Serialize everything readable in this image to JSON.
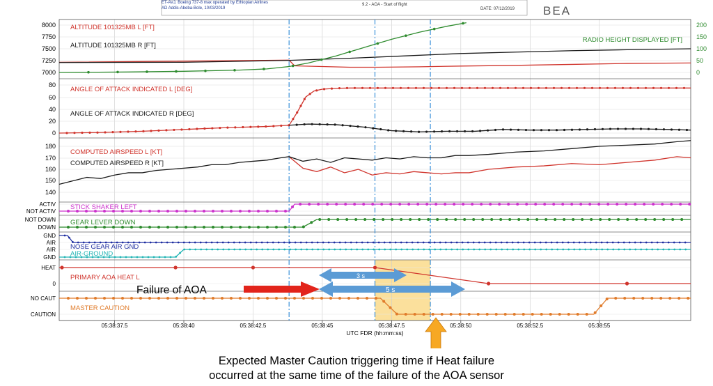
{
  "header": {
    "aircraft": "ET-AVJ, Boeing 737-8 max operated by Ethiopian Airlines",
    "airport": "AD Addis-Abeba-Bole, 10/03/2019",
    "figure": "9.2 - AOA - Start of flight",
    "date": "DATE: 07/12/2019",
    "logo": "BEA"
  },
  "annotations": {
    "failure_label": "Failure of AOA",
    "span_3s": "3 s",
    "span_5s": "5 s",
    "note_line1": "Expected Master Caution triggering time if Heat failure",
    "note_line2": "occurred at the same time of the failure of the AOA sensor"
  },
  "colors": {
    "red": "#d0342c",
    "black": "#1a1a1a",
    "green": "#2e8b2e",
    "magenta": "#cc33cc",
    "blue": "#1f2fa0",
    "cyan": "#1fb3b3",
    "orange": "#e07b2a",
    "highlight": "#f7c64a",
    "arrow_blue": "#5b9bd5",
    "arrow_red": "#e2241b"
  },
  "chart_data": {
    "type": "line",
    "xlabel": "UTC FDR (hh:mm:ss)",
    "x_ticks": [
      "05:38:37.5",
      "05:38:40",
      "05:38:42.5",
      "05:38:45",
      "05:38:47.5",
      "05:38:50",
      "05:38:52.5",
      "05:38:55"
    ],
    "x_tick_seconds": [
      37.5,
      40,
      42.5,
      45,
      47.5,
      50,
      52.5,
      55
    ],
    "x_range_seconds": [
      35.5,
      58.3
    ],
    "markers_seconds": [
      43.8,
      46.9,
      48.9
    ],
    "highlight_seconds": [
      46.9,
      48.9
    ],
    "panels": [
      {
        "name": "altitude",
        "y_ticks": [
          "8000",
          "7750",
          "7500",
          "7250",
          "7000"
        ],
        "y_range": [
          6950,
          8050
        ],
        "right_ticks": [
          "200",
          "150",
          "100",
          "50",
          "0"
        ],
        "right_range": [
          -10,
          210
        ],
        "series": [
          {
            "name": "ALTITUDE 101325MB L [FT]",
            "color": "#d0342c",
            "x": [
              35.5,
              43.8,
              44.0,
              45.0,
              46.0,
              47.0,
              48.5,
              50,
              52,
              54,
              56,
              58.3
            ],
            "y": [
              7215,
              7260,
              7140,
              7125,
              7110,
              7110,
              7120,
              7135,
              7150,
              7170,
              7190,
              7200
            ]
          },
          {
            "name": "ALTITUDE 101325MB R [FT]",
            "color": "#1a1a1a",
            "x": [
              35.5,
              40,
              43.8,
              46,
              48,
              50,
              52,
              54,
              56,
              58.3
            ],
            "y": [
              7210,
              7215,
              7255,
              7300,
              7350,
              7400,
              7430,
              7460,
              7480,
              7500
            ]
          },
          {
            "name": "RADIO HEIGHT DISPLAYED [FT]",
            "color": "#2e8b2e",
            "axis": "right",
            "x": [
              35.5,
              38,
              40,
              42,
              43,
              43.8,
              44.5,
              45.5,
              46.5,
              47.5,
              48.5,
              49.5,
              50.2
            ],
            "y": [
              0,
              2,
              5,
              10,
              15,
              25,
              40,
              70,
              105,
              140,
              170,
              195,
              210
            ]
          }
        ]
      },
      {
        "name": "aoa",
        "y_ticks": [
          "80",
          "60",
          "40",
          "20",
          "0"
        ],
        "y_range": [
          -6,
          86
        ],
        "series": [
          {
            "name": "ANGLE OF ATTACK INDICATED L [DEG]",
            "color": "#d0342c",
            "x": [
              35.5,
              37,
              38.5,
              40,
              41.5,
              43,
              43.8,
              44.1,
              44.4,
              44.7,
              45.0,
              45.5,
              46,
              47,
              48,
              50,
              52,
              54,
              56,
              58.3
            ],
            "y": [
              0,
              1,
              3,
              6,
              9,
              11,
              13,
              35,
              60,
              70,
              73,
              74.5,
              75,
              75,
              75,
              75,
              75,
              75,
              75,
              75
            ]
          },
          {
            "name": "ANGLE OF ATTACK INDICATED R [DEG]",
            "color": "#1a1a1a",
            "x": [
              43.8,
              44.5,
              45.5,
              46.5,
              47.5,
              48.5,
              49.5,
              50.5,
              51.5,
              52.5,
              53.5,
              54.5,
              55.5,
              56.5,
              57.5,
              58.3
            ],
            "y": [
              13,
              15,
              14,
              10,
              4,
              2,
              3,
              3,
              6,
              5,
              5,
              6,
              7,
              7,
              6,
              5
            ]
          }
        ]
      },
      {
        "name": "airspeed",
        "y_ticks": [
          "180",
          "170",
          "160",
          "150",
          "140"
        ],
        "y_range": [
          135,
          186
        ],
        "series": [
          {
            "name": "COMPUTED AIRSPEED L [KT]",
            "color": "#d0342c",
            "x": [
              43.8,
              44.3,
              44.8,
              45.3,
              45.8,
              46.3,
              46.8,
              47.3,
              47.8,
              48.3,
              48.8,
              49.3,
              49.8,
              50.3,
              51,
              52,
              53,
              54,
              55,
              56,
              57,
              57.8,
              58.3
            ],
            "y": [
              171,
              161,
              158,
              162,
              157,
              160,
              155,
              157,
              156,
              158,
              157,
              156,
              157,
              157,
              160,
              162,
              163,
              165,
              164,
              166,
              168,
              171,
              170
            ]
          },
          {
            "name": "COMPUTED AIRSPEED R [KT]",
            "color": "#1a1a1a",
            "x": [
              35.5,
              36,
              36.5,
              37,
              37.5,
              38,
              38.5,
              39,
              39.5,
              40,
              40.5,
              41,
              41.5,
              42,
              42.5,
              43,
              43.5,
              43.8,
              44.3,
              44.8,
              45.3,
              45.8,
              46.3,
              46.8,
              47.3,
              47.8,
              48.3,
              48.8,
              49.3,
              49.8,
              50.3,
              51,
              52,
              53,
              54,
              55,
              56,
              57,
              57.8,
              58.3
            ],
            "y": [
              147,
              150,
              153,
              152,
              155,
              157,
              157,
              159,
              160,
              161,
              162,
              164,
              164,
              166,
              167,
              168,
              170,
              171,
              167,
              169,
              166,
              170,
              169,
              168,
              170,
              169,
              171,
              170,
              170,
              172,
              172,
              173,
              175,
              176,
              178,
              180,
              181,
              182,
              184,
              185
            ]
          }
        ]
      },
      {
        "name": "stick_shaker",
        "y_ticks": [
          "ACTIV",
          "NOT ACTIV"
        ],
        "series": [
          {
            "name": "STICK SHAKER LEFT",
            "color": "#cc33cc",
            "x": [
              35.5,
              43.8,
              44.0,
              58.3
            ],
            "y": [
              0,
              0,
              1,
              1
            ]
          }
        ]
      },
      {
        "name": "gear_lever",
        "y_ticks": [
          "NOT DOWN",
          "DOWN"
        ],
        "series": [
          {
            "name": "GEAR LEVER DOWN",
            "color": "#2e8b2e",
            "x": [
              35.5,
              44.3,
              44.8,
              58.3
            ],
            "y": [
              0,
              0,
              1,
              1
            ]
          }
        ]
      },
      {
        "name": "air_ground",
        "y_ticks": [
          "GND",
          "AIR",
          "AIR",
          "GND"
        ],
        "series": [
          {
            "name": "NOSE GEAR AIR GND",
            "color": "#1f2fa0",
            "x": [
              35.5,
              35.8,
              36.0,
              58.3
            ],
            "y": [
              1,
              1,
              0,
              0
            ]
          },
          {
            "name": "AIR-GROUND",
            "color": "#1fb3b3",
            "x": [
              35.5,
              39.7,
              40.0,
              58.3
            ],
            "y": [
              0,
              0,
              1,
              1
            ]
          }
        ]
      },
      {
        "name": "aoa_heat",
        "y_ticks": [
          "HEAT",
          "0"
        ],
        "series": [
          {
            "name": "PRIMARY AOA HEAT L",
            "color": "#d0342c",
            "x": [
              35.5,
              46.9,
              51.0,
              58.3
            ],
            "y": [
              1,
              1,
              0,
              0
            ]
          }
        ]
      },
      {
        "name": "master_caution",
        "y_ticks": [
          "NO CAUT",
          "CAUTION"
        ],
        "series": [
          {
            "name": "MASTER CAUTION",
            "color": "#e07b2a",
            "x": [
              35.5,
              47.1,
              47.7,
              54.8,
              55.3,
              58.3
            ],
            "y": [
              1,
              1,
              0,
              0,
              1,
              1
            ]
          }
        ]
      }
    ]
  }
}
